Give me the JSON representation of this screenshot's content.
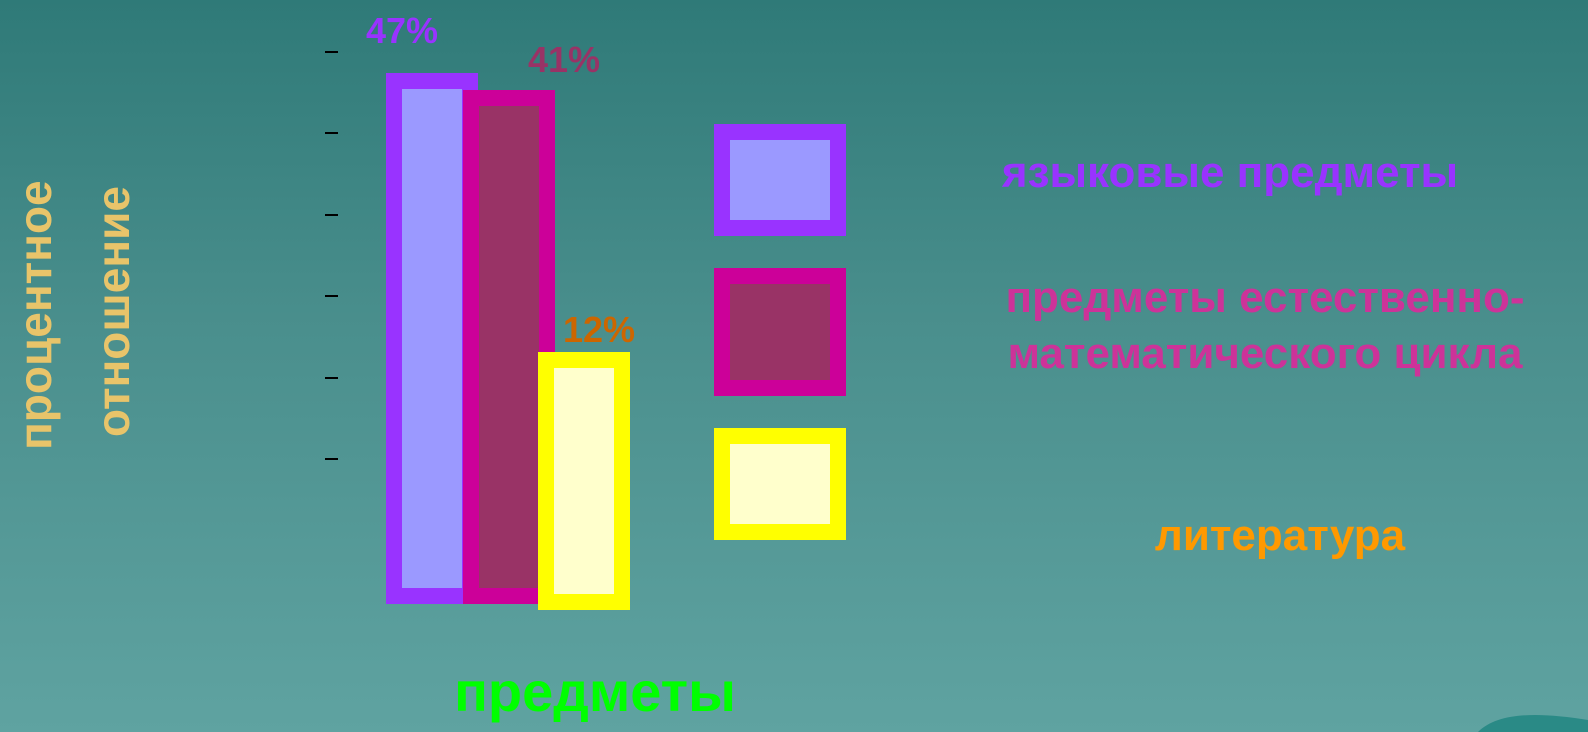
{
  "chart_data": {
    "type": "bar",
    "ylabel": "процентное отношение",
    "xlabel": "предметы",
    "ylim": [
      0,
      50
    ],
    "legend_position": "right",
    "series": [
      {
        "name": "языковые предметы",
        "values": [
          47
        ],
        "data_label": "47%",
        "fill": "#9b99ff",
        "border": "#9933ff",
        "label_color": "#9933ff"
      },
      {
        "name": "предметы естественно-математического цикла",
        "values": [
          41
        ],
        "data_label": "41%",
        "fill": "#993366",
        "border": "#cc0099",
        "label_color": "#993366"
      },
      {
        "name": "литература",
        "values": [
          12
        ],
        "data_label": "12%",
        "fill": "#ffffcc",
        "border": "#ffff00",
        "label_color": "#cc6600"
      }
    ]
  },
  "legend": {
    "item1_text": "языковые предметы",
    "item2_line1": "предметы естественно-",
    "item2_line2": "математического цикла",
    "item3_text": "литература",
    "item1_color": "#9933ff",
    "item2_color": "#cc3399",
    "item3_color": "#ff9900"
  },
  "ylabel_line1": "процентное",
  "ylabel_line2": "отношение"
}
